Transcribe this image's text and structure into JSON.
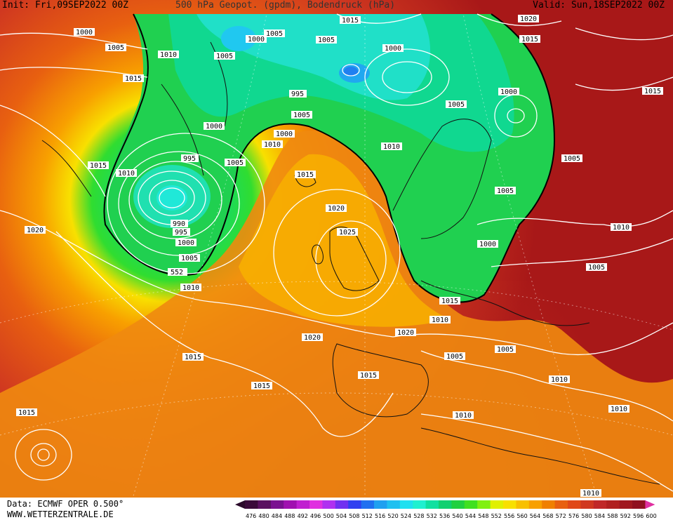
{
  "header": {
    "init": "Init: Fri,09SEP2022 00Z",
    "title": "500 hPa Geopot. (gpdm), Bodendruck (hPa)",
    "valid": "Valid: Sun,18SEP2022 00Z"
  },
  "footer": {
    "data_source": "Data: ECMWF OPER 0.500°",
    "website": "WWW.WETTERZENTRALE.DE"
  },
  "colorbar": {
    "ticks": [
      "476",
      "480",
      "484",
      "488",
      "492",
      "496",
      "500",
      "504",
      "508",
      "512",
      "516",
      "520",
      "524",
      "528",
      "532",
      "536",
      "540",
      "544",
      "548",
      "552",
      "556",
      "560",
      "564",
      "568",
      "572",
      "576",
      "580",
      "584",
      "588",
      "592",
      "596",
      "600"
    ],
    "colors": [
      "#3a0a3a",
      "#5a1060",
      "#7a1090",
      "#a010b0",
      "#c020d0",
      "#e030e0",
      "#b030f0",
      "#7030f0",
      "#3040f0",
      "#2070f0",
      "#20a0f0",
      "#20c0f0",
      "#20e0f0",
      "#20f0d0",
      "#10e0a0",
      "#10d070",
      "#20d040",
      "#40e020",
      "#80f010",
      "#e0f000",
      "#f8e000",
      "#f8c000",
      "#f8a000",
      "#f08000",
      "#e86010",
      "#e04818",
      "#d03820",
      "#c02828",
      "#b02020",
      "#a01820",
      "#901020",
      "#e030a0"
    ]
  },
  "contour_label_552": "552",
  "isobar_labels": [
    "1000",
    "1005",
    "1010",
    "1015",
    "1020",
    "1025",
    "990",
    "995"
  ]
}
